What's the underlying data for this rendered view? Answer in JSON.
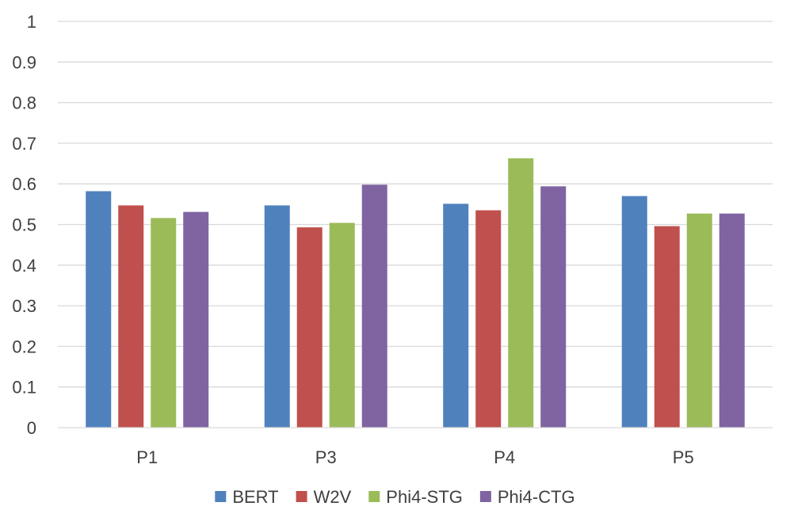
{
  "chart_data": {
    "type": "bar",
    "title": "",
    "xlabel": "",
    "ylabel": "",
    "ylim": [
      0,
      1
    ],
    "yticks": [
      "0",
      "0.1",
      "0.2",
      "0.3",
      "0.4",
      "0.5",
      "0.6",
      "0.7",
      "0.8",
      "0.9",
      "1"
    ],
    "grid": true,
    "legend_position": "bottom",
    "categories": [
      "P1",
      "P3",
      "P4",
      "P5"
    ],
    "series": [
      {
        "name": "BERT",
        "color": "#4F81BD",
        "values": [
          0.582,
          0.547,
          0.551,
          0.57
        ]
      },
      {
        "name": "W2V",
        "color": "#C0504D",
        "values": [
          0.547,
          0.493,
          0.535,
          0.496
        ]
      },
      {
        "name": "Phi4-STG",
        "color": "#9BBB59",
        "values": [
          0.516,
          0.504,
          0.663,
          0.527
        ]
      },
      {
        "name": "Phi4-CTG",
        "color": "#8064A2",
        "values": [
          0.531,
          0.598,
          0.594,
          0.527
        ]
      }
    ]
  }
}
